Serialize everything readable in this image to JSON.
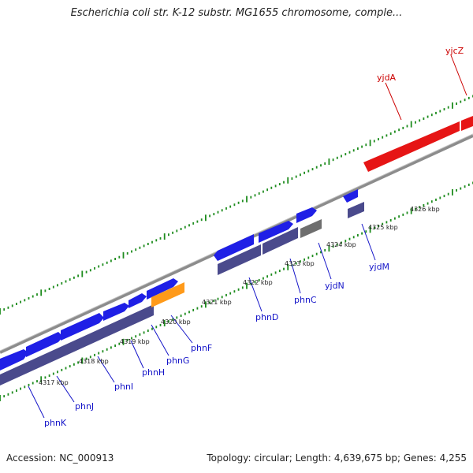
{
  "title": "Escherichia coli str. K-12 substr. MG1655 chromosome, comple...",
  "footer": {
    "accession": "Accession: NC_000913",
    "summary": "Topology: circular; Length: 4,639,675 bp; Genes: 4,255"
  },
  "colors": {
    "forward_gene": "#1f1fe6",
    "reverse_gene": "#e61515",
    "operon_band": "#4a4a8c",
    "gray_band": "#6e6e6e",
    "highlight": "#ff9a1a",
    "tick": "#1e8c1e",
    "backbone": "#888888",
    "gene_label_blue": "#1414c8",
    "gene_label_red": "#cc0000"
  },
  "kbp_labels": [
    "4317 kbp",
    "4318 kbp",
    "4319 kbp",
    "4320 kbp",
    "4321 kbp",
    "4322 kbp",
    "4323 kbp",
    "4324 kbp",
    "4325 kbp",
    "4326 kbp"
  ],
  "genes": [
    {
      "name": "phnK",
      "strand": "forward",
      "color": "blue"
    },
    {
      "name": "phnJ",
      "strand": "forward",
      "color": "blue"
    },
    {
      "name": "phnI",
      "strand": "forward",
      "color": "blue"
    },
    {
      "name": "phnH",
      "strand": "forward",
      "color": "blue"
    },
    {
      "name": "phnG",
      "strand": "forward",
      "color": "blue"
    },
    {
      "name": "phnF",
      "strand": "forward",
      "color": "orange"
    },
    {
      "name": "phnD",
      "strand": "forward",
      "color": "blue"
    },
    {
      "name": "phnC",
      "strand": "forward",
      "color": "blue"
    },
    {
      "name": "yjdN",
      "strand": "forward",
      "color": "gray"
    },
    {
      "name": "yjdM",
      "strand": "forward",
      "color": "blue"
    },
    {
      "name": "yjdA",
      "strand": "reverse",
      "color": "red"
    },
    {
      "name": "yjcZ",
      "strand": "reverse",
      "color": "red"
    }
  ]
}
